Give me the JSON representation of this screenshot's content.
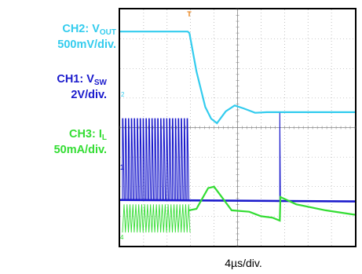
{
  "labels": {
    "ch2": {
      "name": "CH2: V",
      "sub": "OUT",
      "scale": "500mV/div.",
      "color": "#33ccee"
    },
    "ch1": {
      "name": "CH1: V",
      "sub": "SW",
      "scale": "2V/div.",
      "color": "#1a1acc"
    },
    "ch3": {
      "name": "CH3: I",
      "sub": "L",
      "scale": "50mA/div.",
      "color": "#33dd33"
    }
  },
  "timebase": "4µs/div.",
  "markers": {
    "ch2": "2",
    "ch1": "1",
    "ch3": "4",
    "trigger": "T"
  },
  "chart_data": {
    "type": "line",
    "grid": true,
    "divisions": {
      "x": 10,
      "y": 8
    },
    "x_unit": "µs",
    "xlim": [
      0,
      40
    ],
    "trigger_time_us": 11.8,
    "series": [
      {
        "name": "CH2: VOUT",
        "color": "#33ccee",
        "units": "div",
        "points": [
          [
            0,
            7.25
          ],
          [
            11.5,
            7.25
          ],
          [
            11.8,
            7.2
          ],
          [
            13,
            5.9
          ],
          [
            14.5,
            4.7
          ],
          [
            15.5,
            4.3
          ],
          [
            16.5,
            4.15
          ],
          [
            18,
            4.55
          ],
          [
            19.5,
            4.75
          ],
          [
            21,
            4.65
          ],
          [
            23,
            4.5
          ],
          [
            25,
            4.52
          ],
          [
            30,
            4.52
          ],
          [
            40,
            4.52
          ]
        ]
      },
      {
        "name": "CH1: VSW",
        "color": "#1a1acc",
        "units": "div",
        "baseline_div": 1.55,
        "switching": {
          "from_us": 0.4,
          "to_us": 11.7,
          "period_us": 0.5,
          "high_div": 4.3
        },
        "spike": {
          "at_us": 27.2,
          "high_div": 4.5
        },
        "after_level_div": 1.5
      },
      {
        "name": "CH3: IL",
        "color": "#33dd33",
        "units": "div",
        "ripple": {
          "from_us": 0.4,
          "to_us": 11.7,
          "period_us": 0.5,
          "low_div": 0.45,
          "high_div": 1.4
        },
        "points": [
          [
            11.7,
            1.2
          ],
          [
            13,
            1.25
          ],
          [
            15,
            1.95
          ],
          [
            16,
            2.0
          ],
          [
            17.5,
            1.6
          ],
          [
            19,
            1.2
          ],
          [
            22,
            1.15
          ],
          [
            24,
            1.0
          ],
          [
            26,
            0.95
          ],
          [
            27.2,
            0.85
          ],
          [
            27.3,
            1.65
          ],
          [
            30,
            1.4
          ],
          [
            35,
            1.2
          ],
          [
            40,
            1.05
          ]
        ]
      }
    ]
  }
}
